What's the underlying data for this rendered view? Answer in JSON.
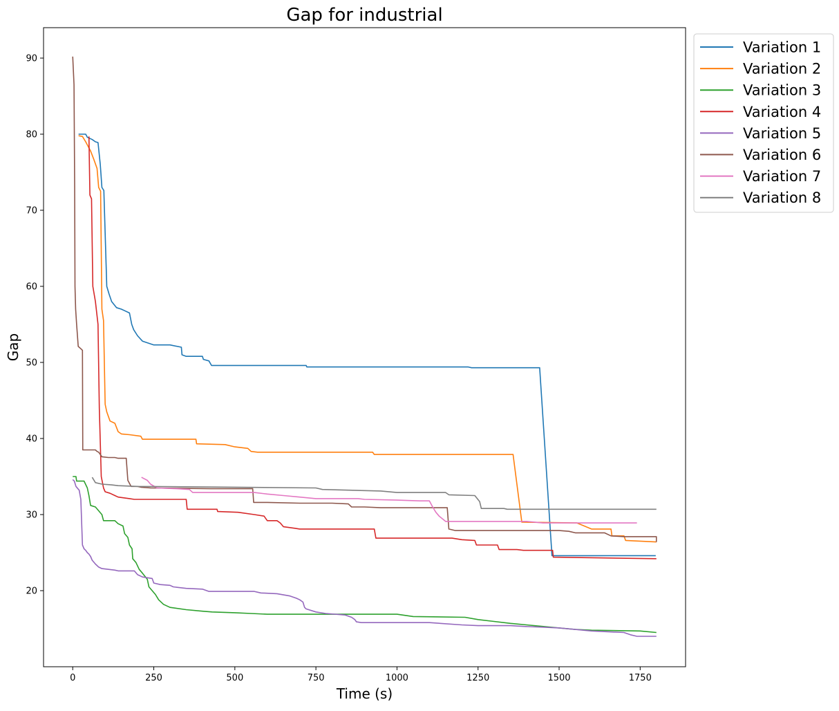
{
  "chart_data": {
    "type": "line",
    "title": "Gap for industrial",
    "xlabel": "Time (s)",
    "ylabel": "Gap",
    "xlim": [
      -90,
      1890
    ],
    "ylim": [
      10,
      94
    ],
    "xticks": [
      0,
      250,
      500,
      750,
      1000,
      1250,
      1500,
      1750
    ],
    "yticks": [
      20,
      30,
      40,
      50,
      60,
      70,
      80,
      90
    ],
    "grid": false,
    "legend_position": "outside-top-right",
    "series": [
      {
        "name": "Variation 1",
        "color": "#1f77b4",
        "points": [
          [
            18,
            80.0
          ],
          [
            40,
            80.0
          ],
          [
            45,
            79.6
          ],
          [
            60,
            79.3
          ],
          [
            70,
            79.0
          ],
          [
            78,
            78.9
          ],
          [
            85,
            76.0
          ],
          [
            90,
            73.0
          ],
          [
            96,
            72.6
          ],
          [
            105,
            60.0
          ],
          [
            112,
            59.0
          ],
          [
            120,
            58.0
          ],
          [
            135,
            57.2
          ],
          [
            150,
            57.0
          ],
          [
            160,
            56.8
          ],
          [
            175,
            56.5
          ],
          [
            182,
            55.0
          ],
          [
            188,
            54.3
          ],
          [
            200,
            53.5
          ],
          [
            215,
            52.8
          ],
          [
            250,
            52.3
          ],
          [
            300,
            52.3
          ],
          [
            335,
            52.0
          ],
          [
            337,
            51.0
          ],
          [
            350,
            50.8
          ],
          [
            400,
            50.8
          ],
          [
            403,
            50.4
          ],
          [
            420,
            50.2
          ],
          [
            428,
            49.6
          ],
          [
            720,
            49.6
          ],
          [
            722,
            49.4
          ],
          [
            1220,
            49.4
          ],
          [
            1230,
            49.3
          ],
          [
            1440,
            49.3
          ],
          [
            1478,
            24.6
          ],
          [
            1798,
            24.6
          ]
        ]
      },
      {
        "name": "Variation 2",
        "color": "#ff7f0e",
        "points": [
          [
            18,
            79.8
          ],
          [
            30,
            79.7
          ],
          [
            40,
            79.0
          ],
          [
            55,
            77.8
          ],
          [
            65,
            76.7
          ],
          [
            75,
            75.5
          ],
          [
            80,
            73.0
          ],
          [
            86,
            72.5
          ],
          [
            90,
            57.0
          ],
          [
            95,
            55.5
          ],
          [
            100,
            44.5
          ],
          [
            105,
            43.5
          ],
          [
            115,
            42.3
          ],
          [
            130,
            42.0
          ],
          [
            140,
            40.9
          ],
          [
            150,
            40.6
          ],
          [
            175,
            40.5
          ],
          [
            210,
            40.3
          ],
          [
            215,
            39.9
          ],
          [
            380,
            39.9
          ],
          [
            382,
            39.3
          ],
          [
            470,
            39.2
          ],
          [
            500,
            38.9
          ],
          [
            540,
            38.7
          ],
          [
            550,
            38.3
          ],
          [
            570,
            38.2
          ],
          [
            925,
            38.2
          ],
          [
            930,
            37.9
          ],
          [
            1358,
            37.9
          ],
          [
            1385,
            29.0
          ],
          [
            1555,
            28.9
          ],
          [
            1600,
            28.1
          ],
          [
            1660,
            28.1
          ],
          [
            1663,
            27.2
          ],
          [
            1700,
            27.2
          ],
          [
            1705,
            26.6
          ],
          [
            1800,
            26.4
          ]
        ]
      },
      {
        "name": "Variation 3",
        "color": "#2ca02c",
        "points": [
          [
            0,
            35.0
          ],
          [
            10,
            35.0
          ],
          [
            12,
            34.4
          ],
          [
            35,
            34.4
          ],
          [
            45,
            33.5
          ],
          [
            50,
            32.5
          ],
          [
            55,
            31.2
          ],
          [
            70,
            31.0
          ],
          [
            80,
            30.5
          ],
          [
            90,
            30.0
          ],
          [
            95,
            29.2
          ],
          [
            130,
            29.2
          ],
          [
            140,
            28.8
          ],
          [
            155,
            28.5
          ],
          [
            160,
            27.5
          ],
          [
            170,
            27.0
          ],
          [
            175,
            26.0
          ],
          [
            183,
            25.5
          ],
          [
            185,
            24.2
          ],
          [
            195,
            23.7
          ],
          [
            205,
            22.8
          ],
          [
            215,
            22.3
          ],
          [
            230,
            21.5
          ],
          [
            235,
            20.5
          ],
          [
            245,
            20.0
          ],
          [
            255,
            19.5
          ],
          [
            265,
            18.8
          ],
          [
            280,
            18.2
          ],
          [
            300,
            17.8
          ],
          [
            350,
            17.5
          ],
          [
            400,
            17.3
          ],
          [
            430,
            17.2
          ],
          [
            500,
            17.1
          ],
          [
            550,
            17.0
          ],
          [
            600,
            16.9
          ],
          [
            1000,
            16.9
          ],
          [
            1050,
            16.6
          ],
          [
            1210,
            16.5
          ],
          [
            1250,
            16.2
          ],
          [
            1290,
            16.0
          ],
          [
            1350,
            15.7
          ],
          [
            1400,
            15.5
          ],
          [
            1500,
            15.1
          ],
          [
            1550,
            14.9
          ],
          [
            1600,
            14.8
          ],
          [
            1750,
            14.7
          ],
          [
            1800,
            14.5
          ]
        ]
      },
      {
        "name": "Variation 4",
        "color": "#d62728",
        "points": [
          [
            50,
            79.7
          ],
          [
            53,
            72.0
          ],
          [
            58,
            71.5
          ],
          [
            62,
            60.0
          ],
          [
            70,
            58.0
          ],
          [
            78,
            55.0
          ],
          [
            82,
            44.0
          ],
          [
            88,
            35.0
          ],
          [
            95,
            33.5
          ],
          [
            100,
            33.0
          ],
          [
            115,
            32.8
          ],
          [
            130,
            32.5
          ],
          [
            140,
            32.3
          ],
          [
            175,
            32.1
          ],
          [
            190,
            32.0
          ],
          [
            350,
            32.0
          ],
          [
            353,
            30.7
          ],
          [
            445,
            30.7
          ],
          [
            447,
            30.4
          ],
          [
            510,
            30.3
          ],
          [
            560,
            30.0
          ],
          [
            590,
            29.8
          ],
          [
            600,
            29.2
          ],
          [
            630,
            29.2
          ],
          [
            640,
            28.9
          ],
          [
            650,
            28.4
          ],
          [
            685,
            28.2
          ],
          [
            700,
            28.1
          ],
          [
            930,
            28.1
          ],
          [
            935,
            26.9
          ],
          [
            1170,
            26.9
          ],
          [
            1200,
            26.7
          ],
          [
            1240,
            26.6
          ],
          [
            1245,
            26.0
          ],
          [
            1310,
            26.0
          ],
          [
            1315,
            25.4
          ],
          [
            1370,
            25.4
          ],
          [
            1390,
            25.3
          ],
          [
            1480,
            25.3
          ],
          [
            1482,
            24.4
          ],
          [
            1800,
            24.2
          ]
        ]
      },
      {
        "name": "Variation 5",
        "color": "#9467bd",
        "points": [
          [
            0,
            34.6
          ],
          [
            5,
            34.4
          ],
          [
            10,
            33.7
          ],
          [
            20,
            33.2
          ],
          [
            25,
            32.0
          ],
          [
            30,
            26.0
          ],
          [
            35,
            25.5
          ],
          [
            40,
            25.3
          ],
          [
            45,
            25.0
          ],
          [
            50,
            24.8
          ],
          [
            55,
            24.5
          ],
          [
            60,
            24.0
          ],
          [
            70,
            23.5
          ],
          [
            80,
            23.1
          ],
          [
            90,
            22.9
          ],
          [
            130,
            22.7
          ],
          [
            140,
            22.6
          ],
          [
            190,
            22.6
          ],
          [
            200,
            22.1
          ],
          [
            215,
            21.8
          ],
          [
            245,
            21.6
          ],
          [
            250,
            21.0
          ],
          [
            270,
            20.8
          ],
          [
            300,
            20.7
          ],
          [
            310,
            20.5
          ],
          [
            350,
            20.3
          ],
          [
            400,
            20.2
          ],
          [
            420,
            19.9
          ],
          [
            560,
            19.9
          ],
          [
            580,
            19.7
          ],
          [
            630,
            19.6
          ],
          [
            670,
            19.3
          ],
          [
            690,
            19.0
          ],
          [
            700,
            18.8
          ],
          [
            710,
            18.5
          ],
          [
            715,
            17.8
          ],
          [
            720,
            17.6
          ],
          [
            750,
            17.2
          ],
          [
            780,
            17.0
          ],
          [
            840,
            16.8
          ],
          [
            860,
            16.5
          ],
          [
            870,
            16.2
          ],
          [
            875,
            15.9
          ],
          [
            890,
            15.8
          ],
          [
            1100,
            15.8
          ],
          [
            1200,
            15.5
          ],
          [
            1250,
            15.4
          ],
          [
            1350,
            15.4
          ],
          [
            1390,
            15.3
          ],
          [
            1450,
            15.2
          ],
          [
            1500,
            15.1
          ],
          [
            1550,
            14.9
          ],
          [
            1600,
            14.7
          ],
          [
            1700,
            14.5
          ],
          [
            1720,
            14.2
          ],
          [
            1740,
            14.0
          ],
          [
            1800,
            14.0
          ]
        ]
      },
      {
        "name": "Variation 6",
        "color": "#8c564b",
        "points": [
          [
            0,
            90.2
          ],
          [
            4,
            86.5
          ],
          [
            6,
            73.0
          ],
          [
            7,
            60.0
          ],
          [
            9,
            57.0
          ],
          [
            12,
            55.0
          ],
          [
            17,
            52.1
          ],
          [
            25,
            51.8
          ],
          [
            30,
            51.6
          ],
          [
            31,
            38.5
          ],
          [
            40,
            38.5
          ],
          [
            70,
            38.5
          ],
          [
            75,
            38.3
          ],
          [
            80,
            38.2
          ],
          [
            90,
            37.6
          ],
          [
            110,
            37.5
          ],
          [
            130,
            37.5
          ],
          [
            140,
            37.4
          ],
          [
            165,
            37.4
          ],
          [
            170,
            34.5
          ],
          [
            180,
            33.7
          ],
          [
            200,
            33.7
          ],
          [
            210,
            33.6
          ],
          [
            240,
            33.5
          ],
          [
            425,
            33.4
          ],
          [
            555,
            33.4
          ],
          [
            558,
            31.6
          ],
          [
            600,
            31.6
          ],
          [
            700,
            31.5
          ],
          [
            800,
            31.5
          ],
          [
            850,
            31.4
          ],
          [
            860,
            31.0
          ],
          [
            900,
            31.0
          ],
          [
            950,
            30.9
          ],
          [
            1155,
            30.9
          ],
          [
            1160,
            28.1
          ],
          [
            1170,
            28.0
          ],
          [
            1180,
            27.9
          ],
          [
            1500,
            27.9
          ],
          [
            1530,
            27.8
          ],
          [
            1550,
            27.6
          ],
          [
            1640,
            27.6
          ],
          [
            1660,
            27.2
          ],
          [
            1700,
            27.1
          ],
          [
            1800,
            27.1
          ],
          [
            1800,
            26.4
          ]
        ]
      },
      {
        "name": "Variation 7",
        "color": "#e377c2",
        "points": [
          [
            212,
            34.9
          ],
          [
            230,
            34.5
          ],
          [
            240,
            34.0
          ],
          [
            260,
            33.5
          ],
          [
            320,
            33.4
          ],
          [
            360,
            33.3
          ],
          [
            370,
            32.9
          ],
          [
            450,
            32.9
          ],
          [
            530,
            32.9
          ],
          [
            560,
            32.9
          ],
          [
            600,
            32.7
          ],
          [
            650,
            32.5
          ],
          [
            700,
            32.3
          ],
          [
            750,
            32.1
          ],
          [
            880,
            32.1
          ],
          [
            900,
            32.0
          ],
          [
            1000,
            31.9
          ],
          [
            1070,
            31.8
          ],
          [
            1100,
            31.8
          ],
          [
            1110,
            31.0
          ],
          [
            1120,
            30.3
          ],
          [
            1130,
            29.8
          ],
          [
            1150,
            29.1
          ],
          [
            1300,
            29.1
          ],
          [
            1400,
            29.1
          ],
          [
            1450,
            28.9
          ],
          [
            1650,
            28.9
          ],
          [
            1740,
            28.9
          ]
        ]
      },
      {
        "name": "Variation 8",
        "color": "#7f7f7f",
        "points": [
          [
            60,
            34.9
          ],
          [
            70,
            34.2
          ],
          [
            90,
            34.0
          ],
          [
            120,
            33.9
          ],
          [
            140,
            33.8
          ],
          [
            200,
            33.7
          ],
          [
            500,
            33.6
          ],
          [
            750,
            33.5
          ],
          [
            770,
            33.3
          ],
          [
            950,
            33.1
          ],
          [
            1000,
            32.9
          ],
          [
            1150,
            32.9
          ],
          [
            1160,
            32.6
          ],
          [
            1240,
            32.5
          ],
          [
            1255,
            31.7
          ],
          [
            1260,
            30.8
          ],
          [
            1330,
            30.8
          ],
          [
            1340,
            30.7
          ],
          [
            1800,
            30.7
          ]
        ]
      }
    ]
  }
}
